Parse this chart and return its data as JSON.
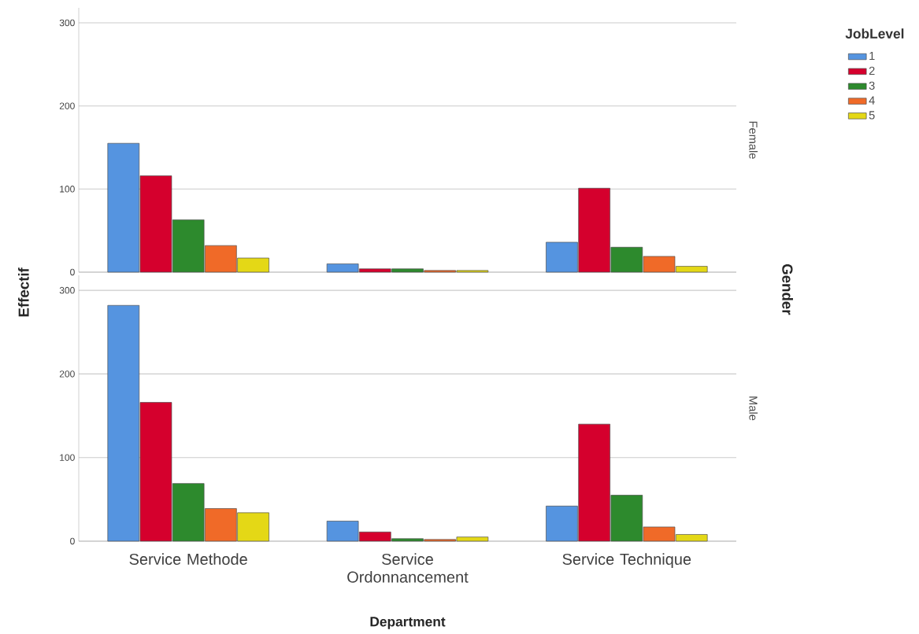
{
  "chart_data": [
    {
      "type": "bar",
      "categories": [
        null,
        null,
        null
      ],
      "ylim": [
        0,
        318
      ],
      "yticks": [
        0,
        100,
        200,
        300
      ],
      "grid": "y",
      "legend": "top right",
      "legend_title": "JobLevel",
      "tick_labels": "y",
      "ylabel": "Effectif",
      "y2label": "Female",
      "annotations": [
        "Gender"
      ],
      "series": [
        {
          "name": "1",
          "color": "#5594e0",
          "values": [
            155,
            10,
            36
          ]
        },
        {
          "name": "2",
          "color": "#d5002d",
          "values": [
            116,
            4,
            101
          ]
        },
        {
          "name": "3",
          "color": "#2d8a2d",
          "values": [
            63,
            4,
            30
          ]
        },
        {
          "name": "4",
          "color": "#f06a28",
          "values": [
            32,
            2,
            19
          ]
        },
        {
          "name": "5",
          "color": "#e4d816",
          "values": [
            17,
            2,
            7
          ]
        }
      ]
    },
    {
      "type": "bar",
      "categories": [
        "Service Methode",
        "Service Ordonnancement",
        "Service Technique"
      ],
      "ylim": [
        0,
        318
      ],
      "yticks": [
        0,
        100,
        200,
        300
      ],
      "grid": "y",
      "xlabel": "Department",
      "y2label": "Male",
      "series": [
        {
          "color": "#5594e0",
          "values": [
            282,
            24,
            42
          ]
        },
        {
          "color": "#d5002d",
          "values": [
            166,
            11,
            140
          ]
        },
        {
          "color": "#2d8a2d",
          "values": [
            69,
            3,
            55
          ]
        },
        {
          "color": "#f06a28",
          "values": [
            39,
            2,
            17
          ]
        },
        {
          "color": "#e4d816",
          "values": [
            34,
            5,
            8
          ]
        }
      ]
    }
  ]
}
